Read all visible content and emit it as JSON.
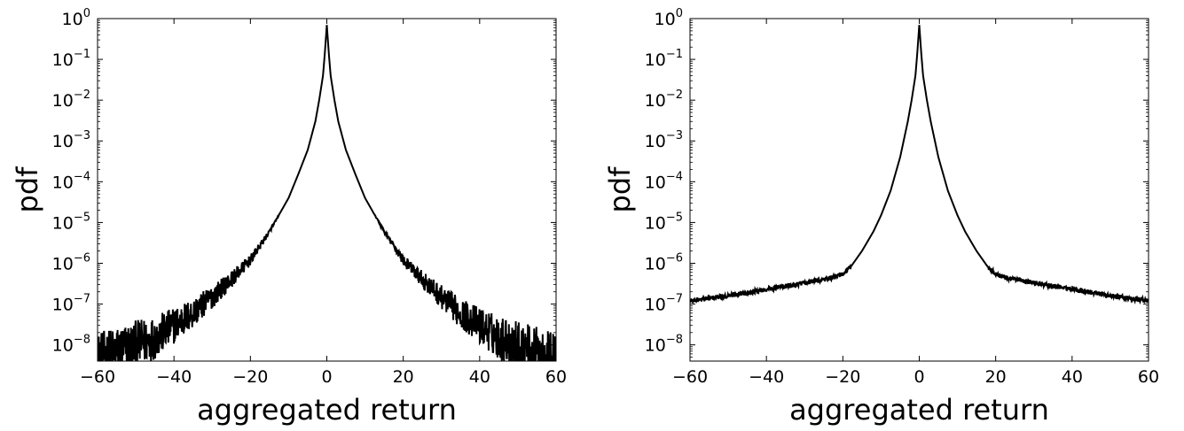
{
  "chart_data": [
    {
      "type": "line",
      "title": "",
      "xlabel": "aggregated return",
      "ylabel": "pdf",
      "xlim": [
        -60,
        60
      ],
      "ylim": [
        4e-09,
        1
      ],
      "yscale": "log",
      "grid": false,
      "x_ticks": [
        -60,
        -40,
        -20,
        0,
        20,
        40,
        60
      ],
      "x_tick_labels": [
        "−60",
        "−40",
        "−20",
        "0",
        "20",
        "40",
        "60"
      ],
      "y_ticks": [
        1e-08,
        1e-07,
        1e-06,
        1e-05,
        0.0001,
        0.001,
        0.01,
        0.1,
        1
      ],
      "y_tick_labels": [
        {
          "base": "10",
          "exp": "−8"
        },
        {
          "base": "10",
          "exp": "−7"
        },
        {
          "base": "10",
          "exp": "−6"
        },
        {
          "base": "10",
          "exp": "−5"
        },
        {
          "base": "10",
          "exp": "−4"
        },
        {
          "base": "10",
          "exp": "−3"
        },
        {
          "base": "10",
          "exp": "−2"
        },
        {
          "base": "10",
          "exp": "−1"
        },
        {
          "base": "10",
          "exp": "0"
        }
      ],
      "series": [
        {
          "color": "#000000",
          "x": [
            -60,
            -55,
            -50,
            -45,
            -40,
            -35,
            -30,
            -25,
            -20,
            -15,
            -10,
            -7.5,
            -5,
            -3,
            -2,
            -1,
            -0.5,
            0,
            0.5,
            1,
            2,
            3,
            5,
            7.5,
            10,
            15,
            20,
            25,
            30,
            35,
            40,
            45,
            50,
            55,
            60
          ],
          "y": [
            5e-09,
            7e-09,
            1e-08,
            1.5e-08,
            3e-08,
            6e-08,
            1.5e-07,
            4e-07,
            1.2e-06,
            6e-06,
            4e-05,
            0.00015,
            0.0006,
            0.003,
            0.01,
            0.04,
            0.15,
            0.7,
            0.15,
            0.04,
            0.01,
            0.003,
            0.0006,
            0.00015,
            4e-05,
            6e-06,
            1.2e-06,
            4e-07,
            1.5e-07,
            6e-08,
            3e-08,
            1.5e-08,
            1e-08,
            7e-09,
            5e-09
          ]
        }
      ]
    },
    {
      "type": "line",
      "title": "",
      "xlabel": "aggregated return",
      "ylabel": "pdf",
      "xlim": [
        -60,
        60
      ],
      "ylim": [
        4e-09,
        1
      ],
      "yscale": "log",
      "grid": false,
      "x_ticks": [
        -60,
        -40,
        -20,
        0,
        20,
        40,
        60
      ],
      "x_tick_labels": [
        "−60",
        "−40",
        "−20",
        "0",
        "20",
        "40",
        "60"
      ],
      "y_ticks": [
        1e-08,
        1e-07,
        1e-06,
        1e-05,
        0.0001,
        0.001,
        0.01,
        0.1,
        1
      ],
      "y_tick_labels": [
        {
          "base": "10",
          "exp": "−8"
        },
        {
          "base": "10",
          "exp": "−7"
        },
        {
          "base": "10",
          "exp": "−6"
        },
        {
          "base": "10",
          "exp": "−5"
        },
        {
          "base": "10",
          "exp": "−4"
        },
        {
          "base": "10",
          "exp": "−3"
        },
        {
          "base": "10",
          "exp": "−2"
        },
        {
          "base": "10",
          "exp": "−1"
        },
        {
          "base": "10",
          "exp": "0"
        }
      ],
      "series": [
        {
          "color": "#000000",
          "x": [
            -60,
            -50,
            -40,
            -30,
            -25,
            -22,
            -20,
            -18,
            -15,
            -12,
            -10,
            -7.5,
            -5,
            -3,
            -2,
            -1,
            -0.5,
            0,
            0.5,
            1,
            2,
            3,
            5,
            7.5,
            10,
            12,
            15,
            18,
            20,
            22,
            25,
            30,
            40,
            50,
            60
          ],
          "y": [
            1.2e-07,
            1.6e-07,
            2.3e-07,
            3.3e-07,
            4e-07,
            4.6e-07,
            5.5e-07,
            8e-07,
            2e-06,
            6e-06,
            1.5e-05,
            6e-05,
            0.0004,
            0.003,
            0.01,
            0.04,
            0.15,
            0.7,
            0.15,
            0.04,
            0.01,
            0.003,
            0.0004,
            6e-05,
            1.5e-05,
            6e-06,
            2e-06,
            8e-07,
            5.5e-07,
            4.6e-07,
            4e-07,
            3.3e-07,
            2.3e-07,
            1.6e-07,
            1.2e-07
          ]
        }
      ]
    }
  ]
}
